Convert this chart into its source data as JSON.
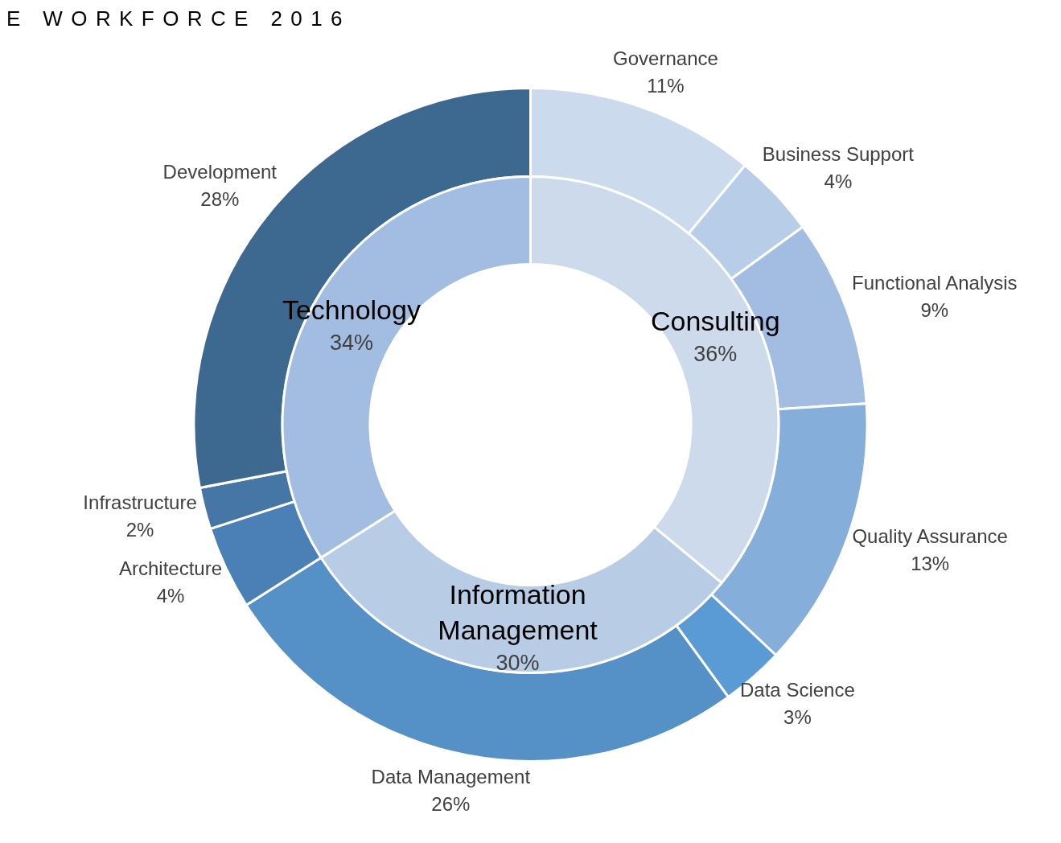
{
  "chart_data": [
    {
      "type": "donut",
      "title": "E WORKFORCE 2016",
      "categories": [
        "Governance",
        "Business Support",
        "Functional Analysis",
        "Quality Assurance",
        "Data Science",
        "Data Management",
        "Architecture",
        "Infrastructure",
        "Development"
      ],
      "values": [
        11,
        4,
        9,
        13,
        3,
        26,
        4,
        2,
        28
      ],
      "value_labels": [
        "11%",
        "4%",
        "9%",
        "13%",
        "3%",
        "26%",
        "4%",
        "2%",
        "28%"
      ],
      "colors": [
        "#cbdaec",
        "#b8cde7",
        "#a3bde2",
        "#85aedb",
        "#5b9bd5",
        "#5591c7",
        "#4a80b5",
        "#4676a6",
        "#3d6990"
      ]
    },
    {
      "type": "donut",
      "categories": [
        "Consulting",
        "Information Management",
        "Technology"
      ],
      "values": [
        36,
        30,
        34
      ],
      "value_labels": [
        "36%",
        "30%",
        "34%"
      ],
      "colors": [
        "#ccdaec",
        "#b8cce6",
        "#a2bde1"
      ]
    }
  ]
}
